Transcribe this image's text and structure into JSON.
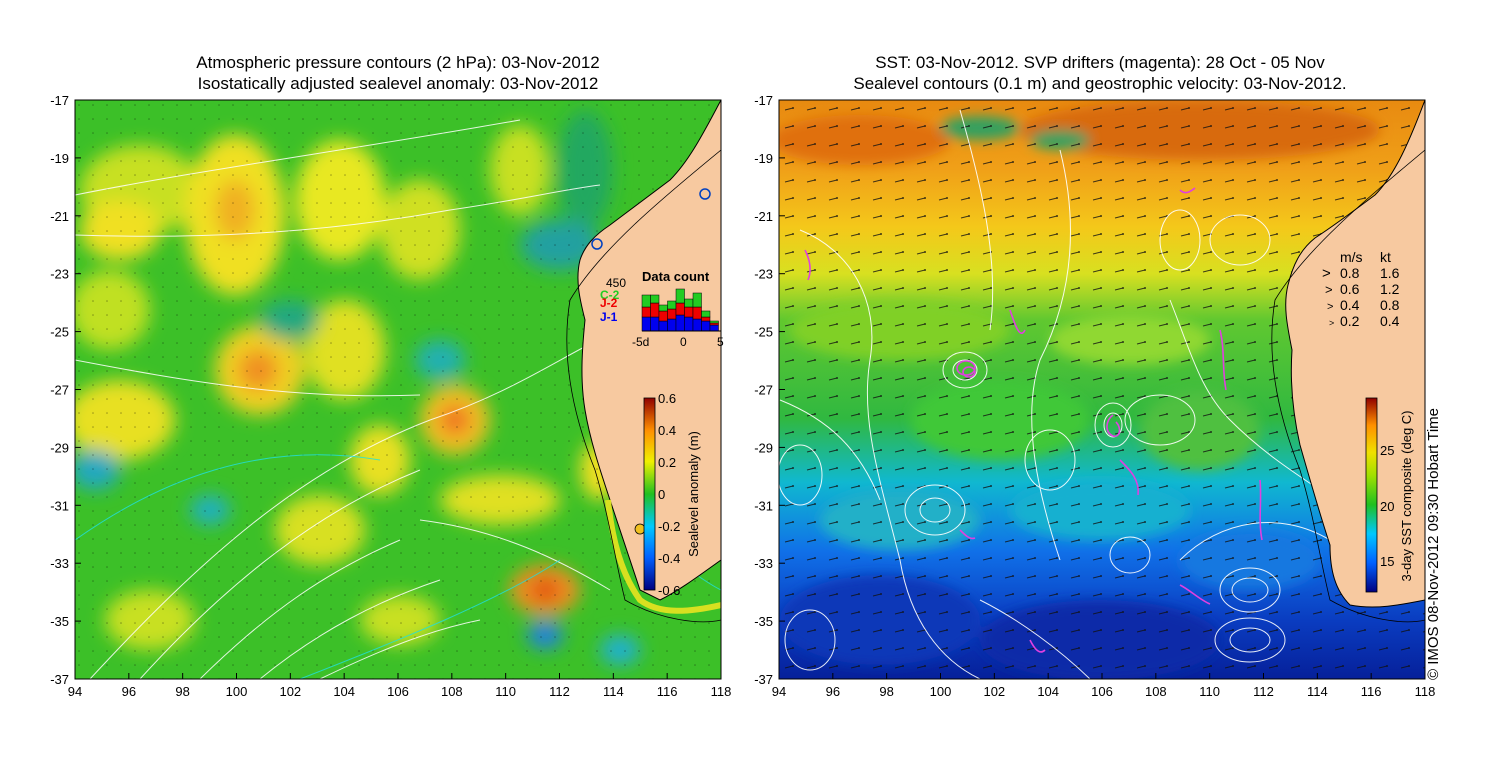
{
  "left_panel": {
    "title_line1": "Atmospheric pressure contours (2 hPa): 03-Nov-2012",
    "title_line2": "Isostatically adjusted sealevel anomaly: 03-Nov-2012",
    "x_ticks": [
      "94",
      "96",
      "98",
      "100",
      "102",
      "104",
      "106",
      "108",
      "110",
      "112",
      "114",
      "116",
      "118"
    ],
    "y_ticks": [
      "-17",
      "-19",
      "-21",
      "-23",
      "-25",
      "-27",
      "-29",
      "-31",
      "-33",
      "-35",
      "-37"
    ],
    "colorbar": {
      "label": "Sealevel anomaly (m)",
      "ticks": [
        "0.6",
        "0.4",
        "0.2",
        "0",
        "-0.2",
        "-0.4",
        "-0.6"
      ],
      "range": [
        -0.6,
        0.6
      ]
    },
    "data_count_inset": {
      "title": "Data count",
      "max_label": "450",
      "missions": [
        {
          "name": "C-2",
          "color": "#22cc22"
        },
        {
          "name": "J-2",
          "color": "#ee0000"
        },
        {
          "name": "J-1",
          "color": "#0000ee"
        }
      ],
      "x_ticks": [
        "-5d",
        "0",
        "5"
      ]
    }
  },
  "right_panel": {
    "title_line1": "SST: 03-Nov-2012. SVP drifters (magenta): 28 Oct - 05 Nov",
    "title_line2": "Sealevel contours (0.1 m) and geostrophic velocity: 03-Nov-2012.",
    "x_ticks": [
      "94",
      "96",
      "98",
      "100",
      "102",
      "104",
      "106",
      "108",
      "110",
      "112",
      "114",
      "116",
      "118"
    ],
    "y_ticks": [
      "-17",
      "-19",
      "-21",
      "-23",
      "-25",
      "-27",
      "-29",
      "-31",
      "-33",
      "-35",
      "-37"
    ],
    "colorbar": {
      "label": "3-day SST composite (deg C)",
      "ticks": [
        "25",
        "20",
        "15"
      ],
      "range": [
        12.5,
        29
      ]
    },
    "velocity_legend": {
      "header_ms": "m/s",
      "header_kt": "kt",
      "rows": [
        {
          "ms": "0.8",
          "kt": "1.6"
        },
        {
          "ms": "0.6",
          "kt": "1.2"
        },
        {
          "ms": "0.4",
          "kt": "0.8"
        },
        {
          "ms": "0.2",
          "kt": "0.4"
        }
      ]
    }
  },
  "credit": "© IMOS 08-Nov-2012 09:30 Hobart Time",
  "colors": {
    "land": "#f7c9a0",
    "drifter": "#e040e0",
    "contour": "#ffffff",
    "coastline": "#000000"
  }
}
